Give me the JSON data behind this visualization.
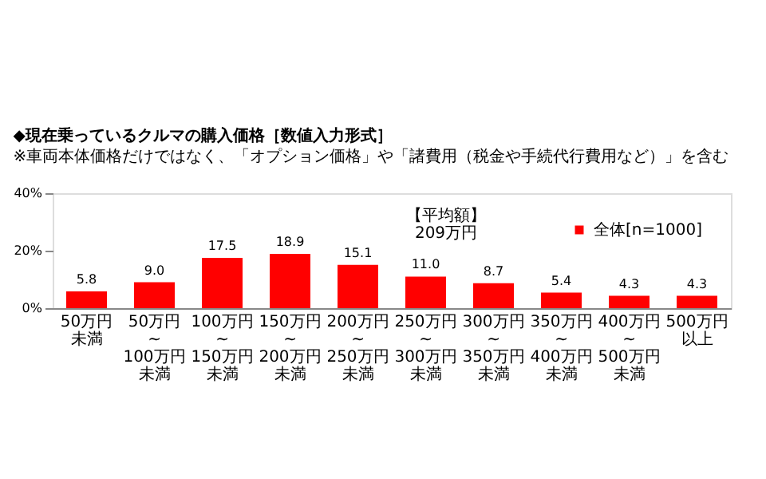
{
  "chart_data": {
    "type": "bar",
    "title": "◆現在乗っているクルマの購入価格［数値入力形式］",
    "subtitle": "※車両本体価格だけではなく、「オプション価格」や「諸費用（税金や手続代行費用など）」を含む",
    "categories": [
      "50万円未満",
      "50万円~100万円未満",
      "100万円~150万円未満",
      "150万円~200万円未満",
      "200万円~250万円未満",
      "250万円~300万円未満",
      "300万円~350万円未満",
      "350万円~400万円未満",
      "400万円~500万円未満",
      "500万円以上"
    ],
    "series": [
      {
        "name": "全体[n=1000]",
        "color": "#ff0000",
        "values": [
          5.8,
          9.0,
          17.5,
          18.9,
          15.1,
          11.0,
          8.7,
          5.4,
          4.3,
          4.3
        ],
        "value_labels": [
          "5.8",
          "9.0",
          "17.5",
          "18.9",
          "15.1",
          "11.0",
          "8.7",
          "5.4",
          "4.3",
          "4.3"
        ]
      }
    ],
    "ylim": [
      0,
      40
    ],
    "yticks": [
      {
        "value": 0,
        "label": "0%"
      },
      {
        "value": 20,
        "label": "20%"
      },
      {
        "value": 40,
        "label": "40%"
      }
    ],
    "annotations": [
      "【平均額】\n209万円"
    ],
    "data_labels": true,
    "legend": "top right",
    "grid": false
  }
}
